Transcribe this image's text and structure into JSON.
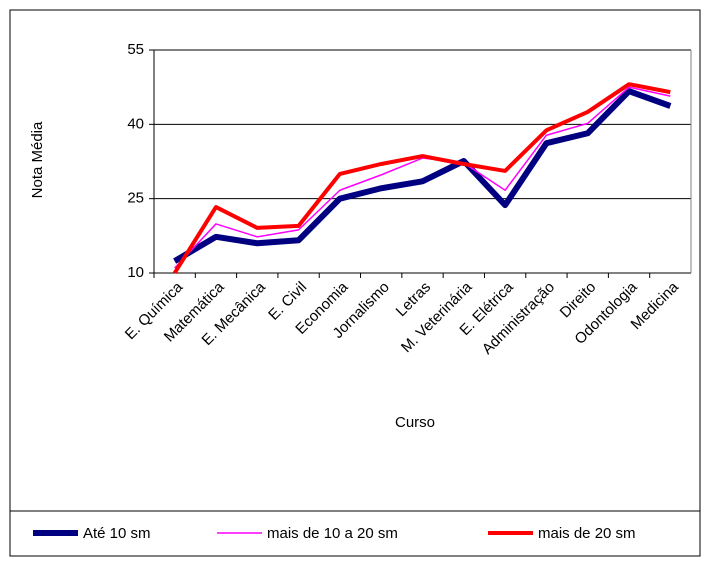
{
  "chart_data": {
    "type": "line",
    "x_label": "Curso",
    "y_label": "Nota Média",
    "categories": [
      "E. Química",
      "Matemática",
      "E. Mecânica",
      "E. Civil",
      "Economia",
      "Jornalismo",
      "Letras",
      "M. Veterinária",
      "E. Elétrica",
      "Administração",
      "Direito",
      "Odontologia",
      "Medicina"
    ],
    "series": [
      {
        "name": "Até 10 sm",
        "color": "#000080",
        "width": 6,
        "values": [
          12.4,
          17.3,
          16,
          16.6,
          25,
          27.1,
          28.5,
          32.6,
          23.7,
          36.2,
          38.2,
          46.7,
          43.7
        ]
      },
      {
        "name": "mais de 10 a 20 sm",
        "color": "#ff00ff",
        "width": 1.5,
        "values": [
          11,
          19.9,
          17.3,
          18.7,
          26.7,
          29.8,
          33.2,
          32.2,
          26.7,
          37.8,
          40.2,
          47.5,
          45.7
        ]
      },
      {
        "name": "mais de 20 sm",
        "color": "#ff0000",
        "width": 4,
        "values": [
          10,
          23.3,
          19.1,
          19.5,
          30,
          32,
          33.6,
          32,
          30.6,
          38.8,
          42.5,
          48.1,
          46.5
        ]
      }
    ],
    "ylim": [
      10,
      55
    ],
    "yticks": [
      10,
      25,
      40,
      55
    ],
    "grid": true,
    "legend": "bottom"
  }
}
